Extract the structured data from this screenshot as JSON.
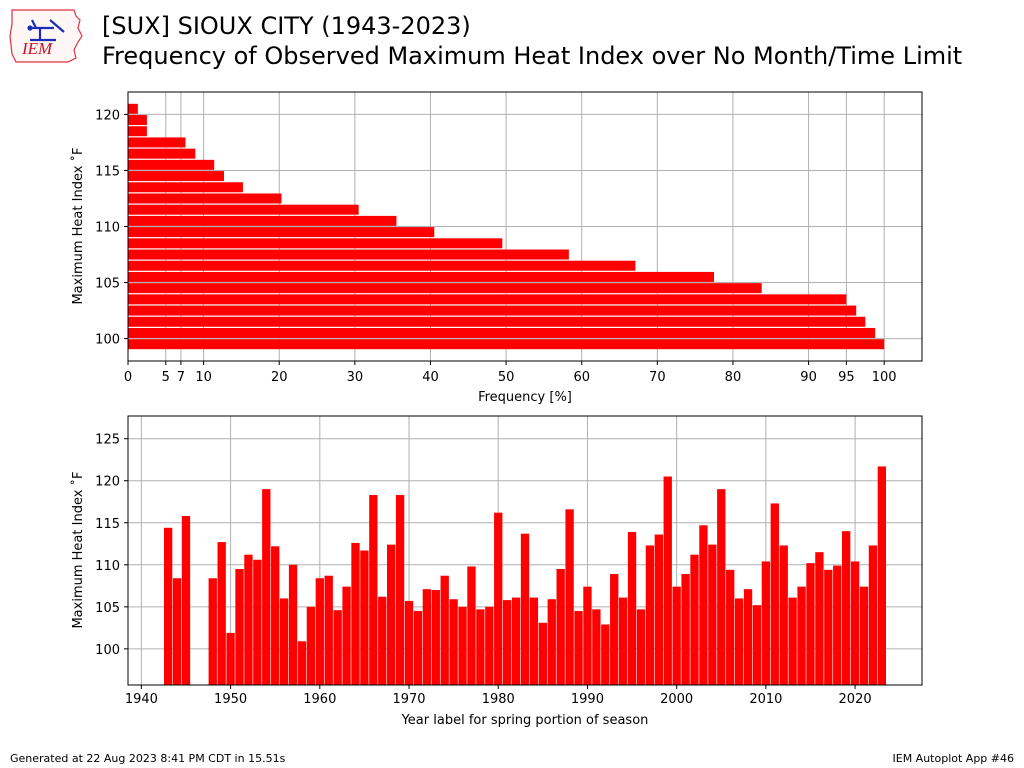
{
  "header": {
    "logo_text": "IEM",
    "title_line1": "[SUX] SIOUX CITY (1943-2023)",
    "title_line2": "Frequency of Observed Maximum Heat Index over No Month/Time Limit"
  },
  "footer": {
    "left": "Generated at 22 Aug 2023 8:41 PM CDT in 15.51s",
    "right": "IEM Autoplot App #46"
  },
  "colors": {
    "bar": "#ff0000",
    "grid": "#b0b0b0",
    "axis": "#000000"
  },
  "chart_data": [
    {
      "type": "bar",
      "orientation": "horizontal",
      "xlabel": "Frequency [%]",
      "ylabel": "Maximum Heat Index $^\\circ$F",
      "ylabel_display": "Maximum Heat Index ˚F",
      "xlim": [
        0,
        105
      ],
      "ylim": [
        98,
        122
      ],
      "xticks": [
        0,
        5,
        7,
        10,
        20,
        30,
        40,
        50,
        60,
        70,
        80,
        90,
        95,
        100
      ],
      "yticks": [
        100,
        105,
        110,
        115,
        120
      ],
      "grid": true,
      "bars": [
        {
          "y": 99,
          "value": 100.0
        },
        {
          "y": 100,
          "value": 98.8
        },
        {
          "y": 101,
          "value": 97.5
        },
        {
          "y": 102,
          "value": 96.3
        },
        {
          "y": 103,
          "value": 95.0
        },
        {
          "y": 104,
          "value": 83.8
        },
        {
          "y": 105,
          "value": 77.5
        },
        {
          "y": 106,
          "value": 67.1
        },
        {
          "y": 107,
          "value": 58.3
        },
        {
          "y": 108,
          "value": 49.5
        },
        {
          "y": 109,
          "value": 40.5
        },
        {
          "y": 110,
          "value": 35.5
        },
        {
          "y": 111,
          "value": 30.5
        },
        {
          "y": 112,
          "value": 20.3
        },
        {
          "y": 113,
          "value": 15.2
        },
        {
          "y": 114,
          "value": 12.7
        },
        {
          "y": 115,
          "value": 11.4
        },
        {
          "y": 116,
          "value": 8.9
        },
        {
          "y": 117,
          "value": 7.6
        },
        {
          "y": 118,
          "value": 2.5
        },
        {
          "y": 119,
          "value": 2.5
        },
        {
          "y": 120,
          "value": 1.3
        }
      ]
    },
    {
      "type": "bar",
      "orientation": "vertical",
      "xlabel": "Year label for spring portion of season",
      "ylabel": "Maximum Heat Index $^\\circ$F",
      "ylabel_display": "Maximum Heat Index ˚F",
      "xlim": [
        1938.5,
        2027.5
      ],
      "ylim": [
        95.7,
        127.7
      ],
      "ybase": 95.7,
      "xticks": [
        1940,
        1950,
        1960,
        1970,
        1980,
        1990,
        2000,
        2010,
        2020
      ],
      "yticks": [
        100,
        105,
        110,
        115,
        120,
        125
      ],
      "grid": true,
      "x": [
        1943,
        1944,
        1945,
        1948,
        1949,
        1950,
        1951,
        1952,
        1953,
        1954,
        1955,
        1956,
        1957,
        1958,
        1959,
        1960,
        1961,
        1962,
        1963,
        1964,
        1965,
        1966,
        1967,
        1968,
        1969,
        1970,
        1971,
        1972,
        1973,
        1974,
        1975,
        1976,
        1977,
        1978,
        1979,
        1980,
        1981,
        1982,
        1983,
        1984,
        1985,
        1986,
        1987,
        1988,
        1989,
        1990,
        1991,
        1992,
        1993,
        1994,
        1995,
        1996,
        1997,
        1998,
        1999,
        2000,
        2001,
        2002,
        2003,
        2004,
        2005,
        2006,
        2007,
        2008,
        2009,
        2010,
        2011,
        2012,
        2013,
        2014,
        2015,
        2016,
        2017,
        2018,
        2019,
        2020,
        2021,
        2022,
        2023
      ],
      "values": [
        114.4,
        108.4,
        115.8,
        108.4,
        112.7,
        101.9,
        109.5,
        111.2,
        110.6,
        119.0,
        112.2,
        106.0,
        110.0,
        100.9,
        105.0,
        108.4,
        108.7,
        104.6,
        107.4,
        112.6,
        111.7,
        118.3,
        106.2,
        112.4,
        118.3,
        105.7,
        104.5,
        107.1,
        107.0,
        108.7,
        105.9,
        105.0,
        109.8,
        104.7,
        105.0,
        116.2,
        105.8,
        106.1,
        113.7,
        106.1,
        103.1,
        105.9,
        109.5,
        116.6,
        104.5,
        107.4,
        104.7,
        102.9,
        108.9,
        106.1,
        113.9,
        104.7,
        112.3,
        113.6,
        120.5,
        107.4,
        108.9,
        111.2,
        114.7,
        112.4,
        119.0,
        109.4,
        106.0,
        107.1,
        105.2,
        110.4,
        117.3,
        112.3,
        106.1,
        107.4,
        110.2,
        111.5,
        109.4,
        109.9,
        114.0,
        110.4,
        107.4,
        112.3,
        121.7
      ]
    }
  ]
}
